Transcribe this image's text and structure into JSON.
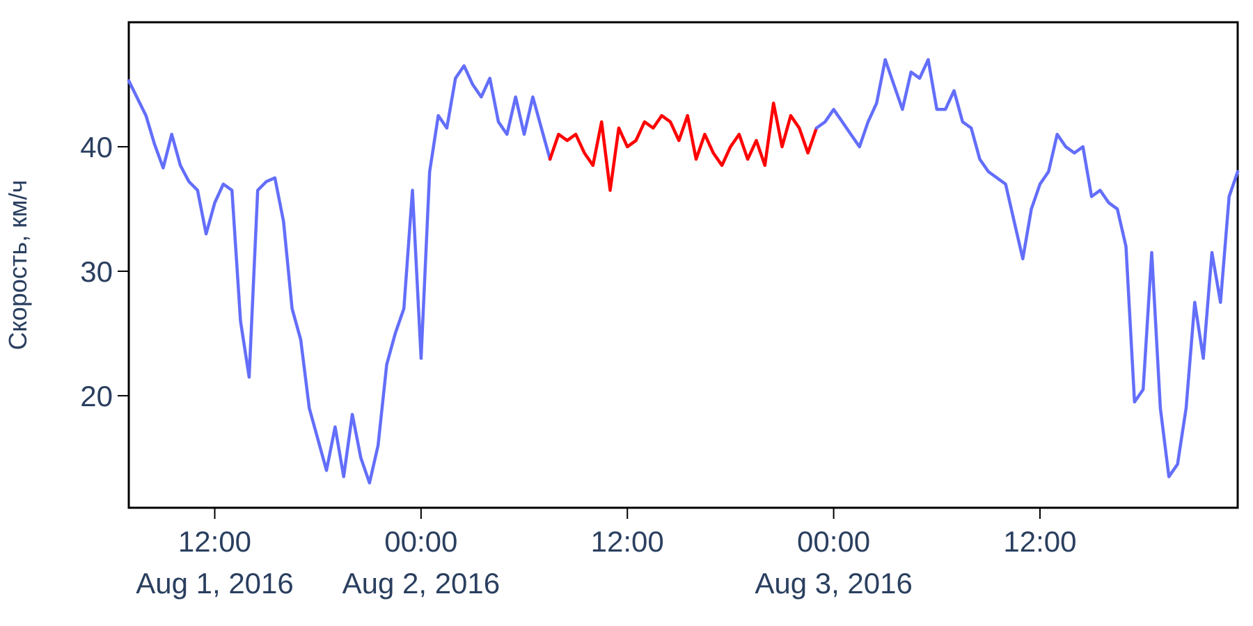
{
  "chart_data": {
    "type": "line",
    "title": "",
    "xlabel": "",
    "ylabel": "Скорость, км/ч",
    "ylim": [
      11,
      50
    ],
    "xlim": [
      "2016-08-01T07:00",
      "2016-08-03T23:30"
    ],
    "grid": false,
    "x_ticks": [
      {
        "x": "2016-08-01T12:00",
        "time": "12:00",
        "date": "Aug 1, 2016"
      },
      {
        "x": "2016-08-02T00:00",
        "time": "00:00",
        "date": "Aug 2, 2016"
      },
      {
        "x": "2016-08-02T12:00",
        "time": "12:00",
        "date": ""
      },
      {
        "x": "2016-08-03T00:00",
        "time": "00:00",
        "date": "Aug 3, 2016"
      },
      {
        "x": "2016-08-03T12:00",
        "time": "12:00",
        "date": ""
      }
    ],
    "y_ticks": [
      {
        "y": 20,
        "label": "20"
      },
      {
        "y": 30,
        "label": "30"
      },
      {
        "y": 40,
        "label": "40"
      }
    ],
    "series": [
      {
        "color": "#636efa",
        "x": [
          "2016-08-01T07:00",
          "2016-08-01T08:00",
          "2016-08-01T08:30",
          "2016-08-01T09:00",
          "2016-08-01T09:30",
          "2016-08-01T10:00",
          "2016-08-01T10:30",
          "2016-08-01T11:00",
          "2016-08-01T11:30",
          "2016-08-01T12:00",
          "2016-08-01T12:30",
          "2016-08-01T13:00",
          "2016-08-01T13:30",
          "2016-08-01T14:00",
          "2016-08-01T14:30",
          "2016-08-01T15:00",
          "2016-08-01T15:30",
          "2016-08-01T16:00",
          "2016-08-01T16:30",
          "2016-08-01T17:00",
          "2016-08-01T17:30",
          "2016-08-01T18:00",
          "2016-08-01T18:30",
          "2016-08-01T19:00",
          "2016-08-01T19:30",
          "2016-08-01T20:00",
          "2016-08-01T20:30",
          "2016-08-01T21:00",
          "2016-08-01T21:30",
          "2016-08-01T22:00",
          "2016-08-01T22:30",
          "2016-08-01T23:00",
          "2016-08-01T23:30",
          "2016-08-02T00:00",
          "2016-08-02T00:30",
          "2016-08-02T01:00",
          "2016-08-02T01:30",
          "2016-08-02T02:00",
          "2016-08-02T02:30",
          "2016-08-02T03:00",
          "2016-08-02T03:30",
          "2016-08-02T04:00",
          "2016-08-02T04:30",
          "2016-08-02T05:00",
          "2016-08-02T05:30",
          "2016-08-02T06:00",
          "2016-08-02T06:30",
          "2016-08-02T07:00",
          "2016-08-02T07:30"
        ],
        "y": [
          45.3,
          42.5,
          40.2,
          38.3,
          41.0,
          38.5,
          37.2,
          36.5,
          33.0,
          35.5,
          37.0,
          36.5,
          26.0,
          21.5,
          36.5,
          37.2,
          37.5,
          34.0,
          27.0,
          24.5,
          19.0,
          16.5,
          14.0,
          17.5,
          13.5,
          18.5,
          15.0,
          13.0,
          16.0,
          22.5,
          25.0,
          27.0,
          36.5,
          23.0,
          38.0,
          42.5,
          41.5,
          45.5,
          46.5,
          45.0,
          44.0,
          45.5,
          42.0,
          41.0,
          44.0,
          41.0,
          44.0,
          41.5,
          39.0
        ]
      },
      {
        "color": "#ff0000",
        "x": [
          "2016-08-02T07:30",
          "2016-08-02T08:00",
          "2016-08-02T08:30",
          "2016-08-02T09:00",
          "2016-08-02T09:30",
          "2016-08-02T10:00",
          "2016-08-02T10:30",
          "2016-08-02T11:00",
          "2016-08-02T11:30",
          "2016-08-02T12:00",
          "2016-08-02T12:30",
          "2016-08-02T13:00",
          "2016-08-02T13:30",
          "2016-08-02T14:00",
          "2016-08-02T14:30",
          "2016-08-02T15:00",
          "2016-08-02T15:30",
          "2016-08-02T16:00",
          "2016-08-02T16:30",
          "2016-08-02T17:00",
          "2016-08-02T17:30",
          "2016-08-02T18:00",
          "2016-08-02T18:30",
          "2016-08-02T19:00",
          "2016-08-02T19:30",
          "2016-08-02T20:00",
          "2016-08-02T20:30",
          "2016-08-02T21:00",
          "2016-08-02T21:30",
          "2016-08-02T22:00",
          "2016-08-02T22:30",
          "2016-08-02T23:00"
        ],
        "y": [
          39.0,
          41.0,
          40.5,
          41.0,
          39.5,
          38.5,
          42.0,
          36.5,
          41.5,
          40.0,
          40.5,
          42.0,
          41.5,
          42.5,
          42.0,
          40.5,
          42.5,
          39.0,
          41.0,
          39.5,
          38.5,
          40.0,
          41.0,
          39.0,
          40.5,
          38.5,
          43.5,
          40.0,
          42.5,
          41.5,
          39.5,
          41.5
        ]
      },
      {
        "color": "#636efa",
        "x": [
          "2016-08-02T23:00",
          "2016-08-02T23:30",
          "2016-08-03T00:00",
          "2016-08-03T00:30",
          "2016-08-03T01:00",
          "2016-08-03T01:30",
          "2016-08-03T02:00",
          "2016-08-03T02:30",
          "2016-08-03T03:00",
          "2016-08-03T03:30",
          "2016-08-03T04:00",
          "2016-08-03T04:30",
          "2016-08-03T05:00",
          "2016-08-03T05:30",
          "2016-08-03T06:00",
          "2016-08-03T06:30",
          "2016-08-03T07:00",
          "2016-08-03T07:30",
          "2016-08-03T08:00",
          "2016-08-03T08:30",
          "2016-08-03T09:00",
          "2016-08-03T09:30",
          "2016-08-03T10:00",
          "2016-08-03T10:30",
          "2016-08-03T11:00",
          "2016-08-03T11:30",
          "2016-08-03T12:00",
          "2016-08-03T12:30",
          "2016-08-03T13:00",
          "2016-08-03T13:30",
          "2016-08-03T14:00",
          "2016-08-03T14:30",
          "2016-08-03T15:00",
          "2016-08-03T15:30",
          "2016-08-03T16:00",
          "2016-08-03T16:30",
          "2016-08-03T17:00",
          "2016-08-03T17:30",
          "2016-08-03T18:00",
          "2016-08-03T18:30",
          "2016-08-03T19:00",
          "2016-08-03T19:30",
          "2016-08-03T20:00",
          "2016-08-03T20:30",
          "2016-08-03T21:00",
          "2016-08-03T21:30",
          "2016-08-03T22:00",
          "2016-08-03T22:30",
          "2016-08-03T23:00",
          "2016-08-03T23:30"
        ],
        "y": [
          41.5,
          42.0,
          43.0,
          42.0,
          41.0,
          40.0,
          42.0,
          43.5,
          47.0,
          45.0,
          43.0,
          46.0,
          45.5,
          47.0,
          43.0,
          43.0,
          44.5,
          42.0,
          41.5,
          39.0,
          38.0,
          37.5,
          37.0,
          34.0,
          31.0,
          35.0,
          37.0,
          38.0,
          41.0,
          40.0,
          39.5,
          40.0,
          36.0,
          36.5,
          35.5,
          35.0,
          32.0,
          19.5,
          20.5,
          31.5,
          19.0,
          13.5,
          14.5,
          19.0,
          27.5,
          23.0,
          31.5,
          27.5,
          36.0,
          38.0
        ]
      }
    ]
  }
}
